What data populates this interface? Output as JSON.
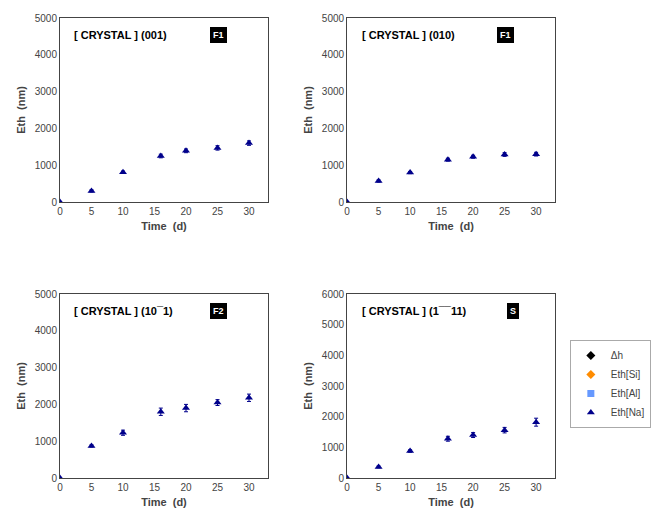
{
  "chart_data": [
    {
      "type": "scatter",
      "title": "[ CRYSTAL ] (001)",
      "annotations": [
        "F1"
      ],
      "xlabel": "Time  (d)",
      "ylabel": "Eth  (nm)",
      "xlim": [
        0,
        33
      ],
      "xticks": [
        0,
        5,
        10,
        15,
        20,
        25,
        30
      ],
      "ylim": [
        0,
        5000
      ],
      "yticks": [
        0,
        1000,
        2000,
        3000,
        4000,
        5000
      ],
      "grid": false,
      "x": [
        0,
        5,
        10,
        16,
        20,
        25,
        30
      ],
      "series": [
        {
          "color": "#00008B",
          "marker": "triangle-up",
          "values": [
            0,
            300,
            810,
            1250,
            1390,
            1470,
            1600
          ],
          "errors": [
            10,
            30,
            30,
            50,
            50,
            60,
            60
          ]
        }
      ]
    },
    {
      "type": "scatter",
      "title": "[ CRYSTAL ] (010)",
      "annotations": [
        "F1"
      ],
      "xlabel": "Time  (d)",
      "ylabel": "Eth  (nm)",
      "xlim": [
        0,
        33
      ],
      "xticks": [
        0,
        5,
        10,
        15,
        20,
        25,
        30
      ],
      "ylim": [
        0,
        5000
      ],
      "yticks": [
        0,
        1000,
        2000,
        3000,
        4000,
        5000
      ],
      "grid": false,
      "x": [
        0,
        5,
        10,
        16,
        20,
        25,
        30
      ],
      "series": [
        {
          "color": "#00008B",
          "marker": "triangle-up",
          "values": [
            0,
            570,
            800,
            1150,
            1230,
            1290,
            1300
          ],
          "errors": [
            10,
            30,
            30,
            40,
            40,
            50,
            50
          ]
        }
      ]
    },
    {
      "type": "scatter",
      "title": "[ CRYSTAL ] (10¯1)",
      "annotations": [
        "F2"
      ],
      "xlabel": "Time  (d)",
      "ylabel": "Eth  (nm)",
      "xlim": [
        0,
        33
      ],
      "xticks": [
        0,
        5,
        10,
        15,
        20,
        25,
        30
      ],
      "ylim": [
        0,
        5000
      ],
      "yticks": [
        0,
        1000,
        2000,
        3000,
        4000,
        5000
      ],
      "grid": false,
      "x": [
        0,
        5,
        10,
        16,
        20,
        25,
        30
      ],
      "series": [
        {
          "color": "#00008B",
          "marker": "triangle-up",
          "values": [
            0,
            870,
            1230,
            1800,
            1900,
            2050,
            2180
          ],
          "errors": [
            10,
            30,
            70,
            100,
            100,
            80,
            100
          ]
        }
      ]
    },
    {
      "type": "scatter",
      "title": "[ CRYSTAL ] (1¯¯11)",
      "annotations": [
        "S"
      ],
      "xlabel": "Time  (d)",
      "ylabel": "Eth  (nm)",
      "xlim": [
        0,
        33
      ],
      "xticks": [
        0,
        5,
        10,
        15,
        20,
        25,
        30
      ],
      "ylim": [
        0,
        6000
      ],
      "yticks": [
        0,
        1000,
        2000,
        3000,
        4000,
        5000,
        6000
      ],
      "grid": false,
      "legend": "right",
      "x": [
        0,
        5,
        10,
        16,
        20,
        25,
        30
      ],
      "series": [
        {
          "name": "Δh",
          "color": "#000000",
          "marker": "diamond",
          "values": [
            null,
            null,
            null,
            null,
            null,
            null,
            null
          ]
        },
        {
          "name": "Eth[Si]",
          "color": "#FF8C00",
          "marker": "diamond",
          "values": [
            null,
            null,
            null,
            null,
            null,
            null,
            null
          ]
        },
        {
          "name": "Eth[Al]",
          "color": "#6699FF",
          "marker": "square",
          "values": [
            null,
            null,
            null,
            null,
            null,
            null,
            null
          ]
        },
        {
          "name": "Eth[Na]",
          "color": "#00008B",
          "marker": "triangle-up",
          "values": [
            0,
            360,
            880,
            1280,
            1400,
            1560,
            1820
          ],
          "errors": [
            10,
            30,
            40,
            80,
            80,
            90,
            130
          ]
        }
      ]
    }
  ]
}
